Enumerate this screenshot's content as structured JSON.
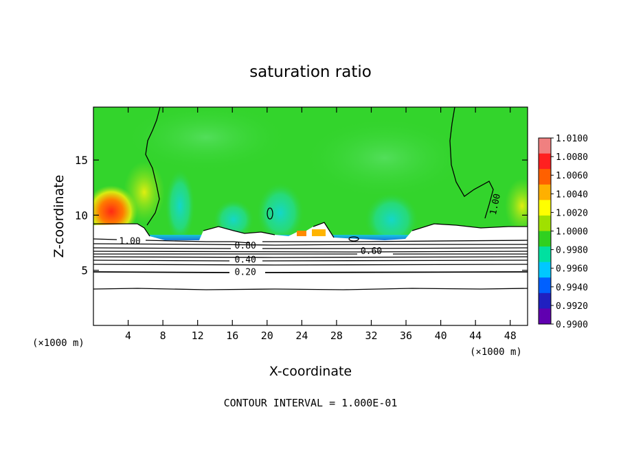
{
  "chart_data": {
    "type": "heatmap",
    "title": "saturation ratio",
    "xlabel": "X-coordinate",
    "ylabel": "Z-coordinate",
    "x_unit": "(×1000 m)",
    "z_unit": "(×1000 m)",
    "xlim": [
      0,
      50
    ],
    "ylim": [
      0,
      19.8
    ],
    "x_ticks": [
      4,
      8,
      12,
      16,
      20,
      24,
      28,
      32,
      36,
      40,
      44,
      48
    ],
    "y_ticks": [
      5,
      10,
      15
    ],
    "colorbar": {
      "ticks": [
        "1.0100",
        "1.0080",
        "1.0060",
        "1.0040",
        "1.0020",
        "1.0000",
        "0.9980",
        "0.9960",
        "0.9940",
        "0.9920",
        "0.9900"
      ],
      "colors": [
        "#f08080",
        "#ff2020",
        "#ff6000",
        "#ffb000",
        "#ffff00",
        "#a0e000",
        "#30d020",
        "#00e0a0",
        "#00c8ff",
        "#0060ff",
        "#2020c0",
        "#6000b0"
      ]
    },
    "contour_labels": [
      {
        "text": "1.00",
        "x": 4.2,
        "z": 7.7
      },
      {
        "text": "0.80",
        "x": 17.5,
        "z": 7.3
      },
      {
        "text": "0.60",
        "x": 32,
        "z": 6.8
      },
      {
        "text": "0.40",
        "x": 17.5,
        "z": 6.0
      },
      {
        "text": "0.20",
        "x": 17.5,
        "z": 4.9
      },
      {
        "text": "1.00",
        "x": 46.2,
        "z": 11.0
      }
    ],
    "footnote": "CONTOUR INTERVAL = 1.000E-01"
  },
  "colors": {
    "background": "#ffffff",
    "field_base": "#33d42c",
    "field_light": "#3fd946",
    "field_teal": "#19e3a6",
    "field_cyan": "#19c9ec",
    "field_blue": "#1560ff",
    "field_yellow": "#c6ee1b",
    "field_red": "#ff3a16",
    "cloud": "#ffffff",
    "contour": "#000000"
  }
}
